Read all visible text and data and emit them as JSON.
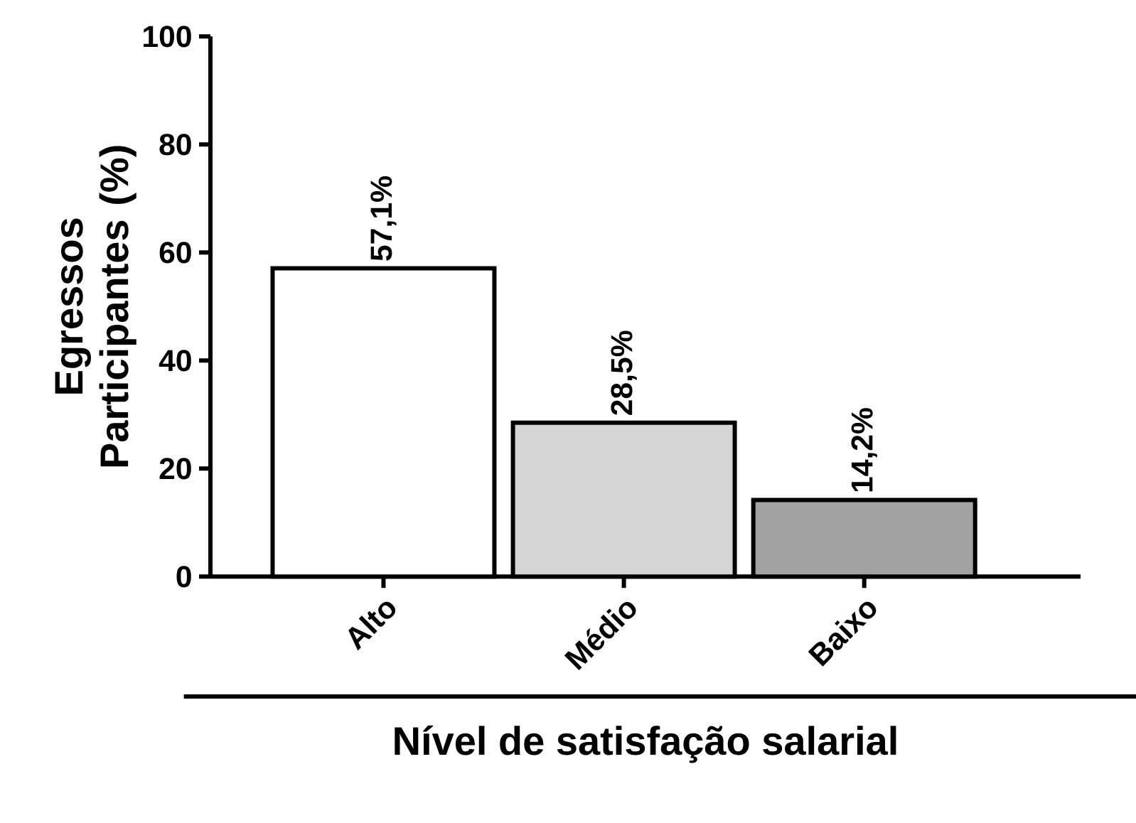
{
  "chart_data": {
    "type": "bar",
    "xlabel": "Nível de satisfação salarial",
    "ylabel": "Egressos Participantes (%)",
    "categories": [
      "Alto",
      "Médio",
      "Baixo"
    ],
    "values": [
      57.1,
      28.5,
      14.2
    ],
    "colors": [
      "#ffffff",
      "#d4d4d4",
      "#a3a3a3"
    ],
    "value_labels": [
      "57,1%",
      "28,5%",
      "14,2%"
    ],
    "ylim": [
      0,
      100
    ],
    "yticks": [
      0,
      20,
      40,
      60,
      80,
      100
    ],
    "grid": false
  }
}
